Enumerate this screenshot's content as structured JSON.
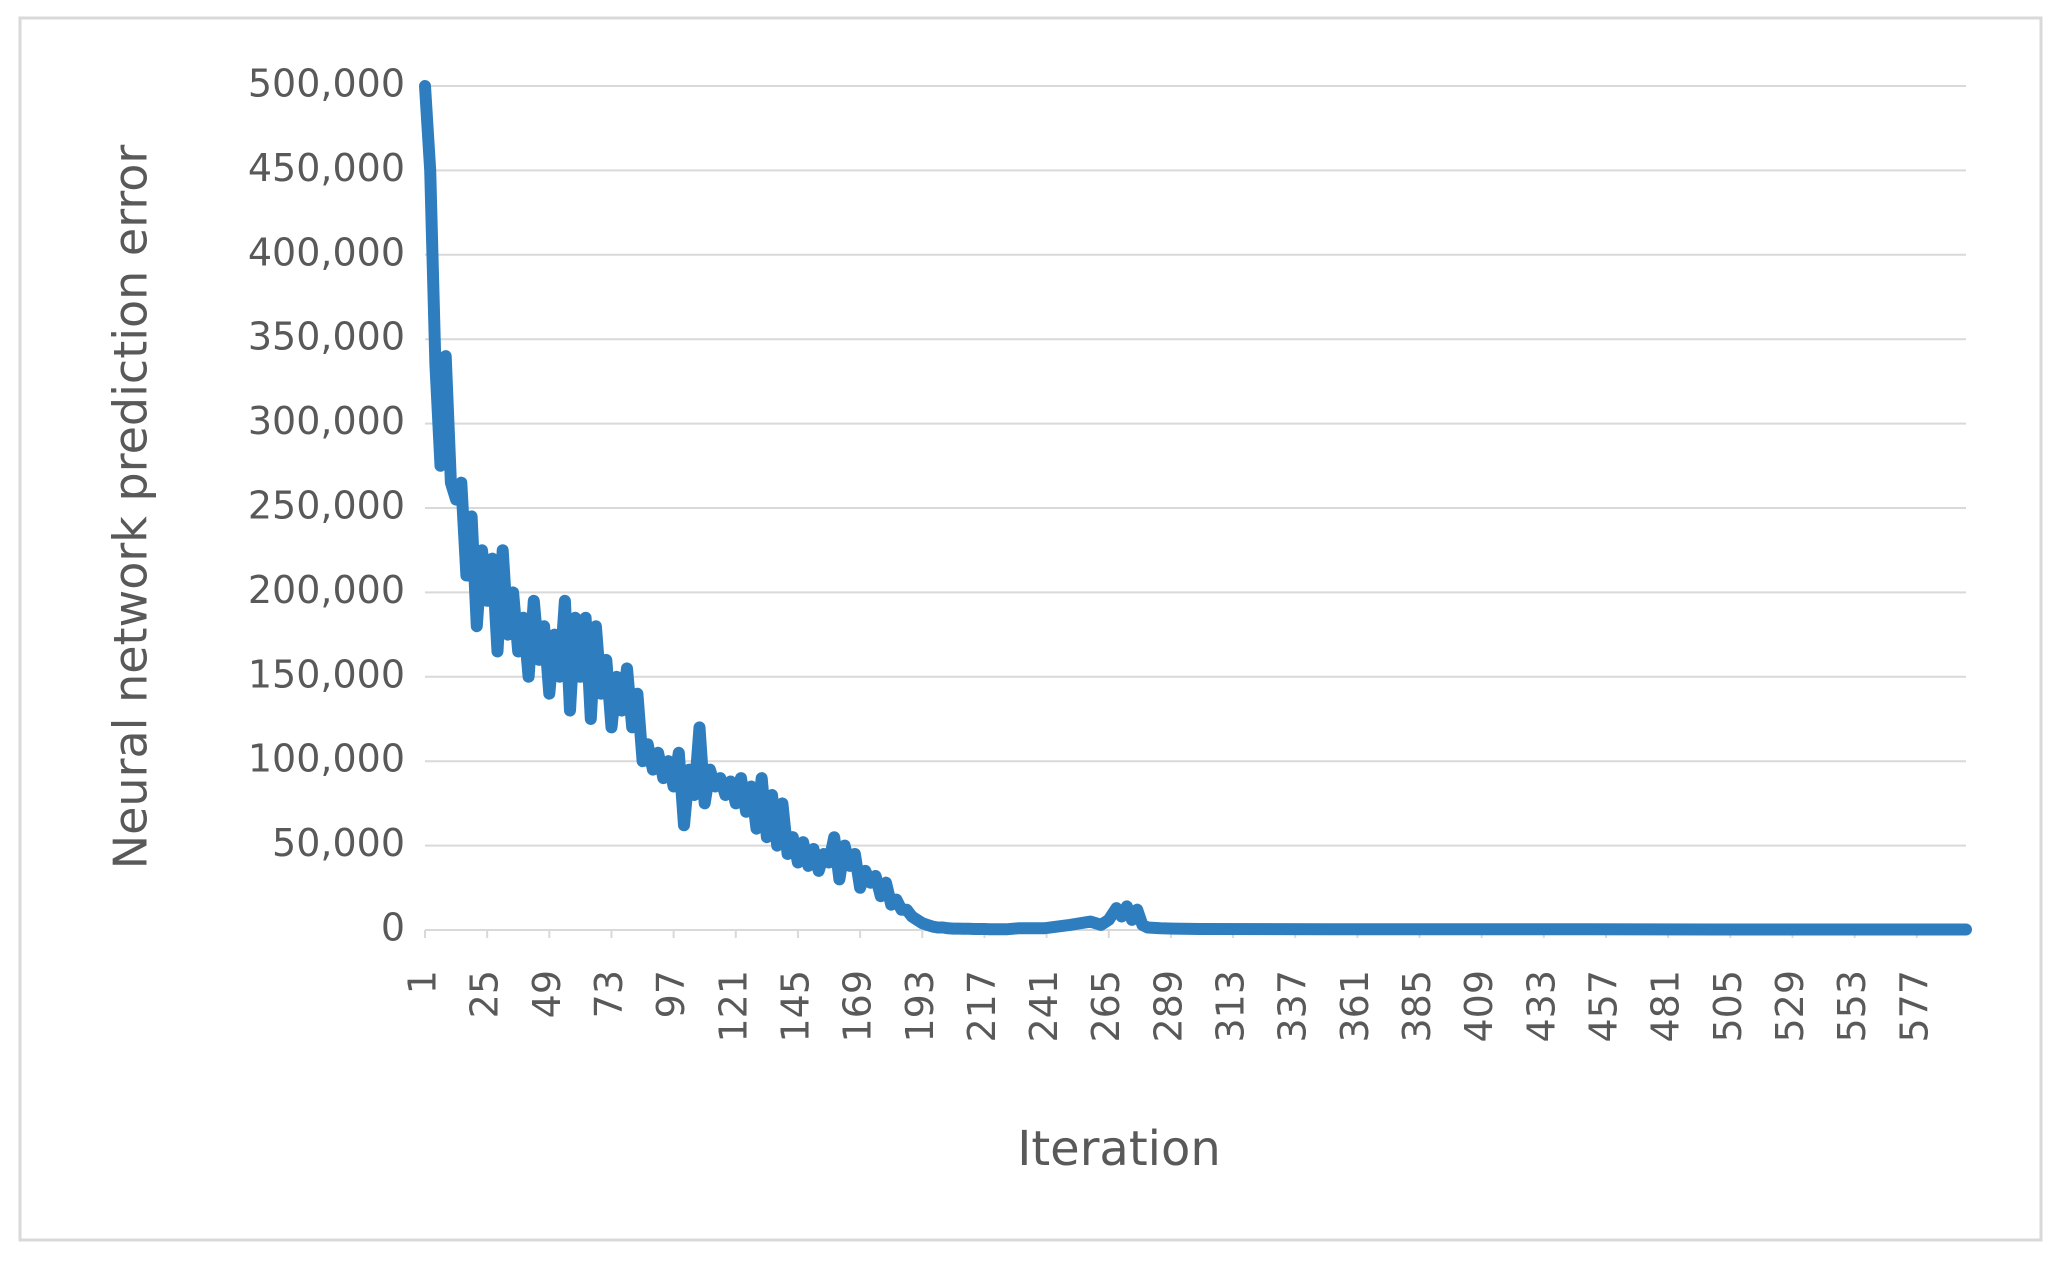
{
  "chart_data": {
    "type": "line",
    "x_label": "Iteration",
    "y_label": "Neural network prediction error",
    "color": "#2e7ebf",
    "grid": true,
    "xlim": [
      1,
      596
    ],
    "xticks": [
      1,
      25,
      49,
      73,
      97,
      121,
      145,
      169,
      193,
      217,
      241,
      265,
      289,
      313,
      337,
      361,
      385,
      409,
      433,
      457,
      481,
      505,
      529,
      553,
      577
    ],
    "ylim": [
      0,
      500000
    ],
    "yticks": [
      0,
      {
        "value": 50000,
        "label": "50,000"
      },
      {
        "value": 100000,
        "label": "100,000"
      },
      {
        "value": 150000,
        "label": "150,000"
      },
      {
        "value": 200000,
        "label": "200,000"
      },
      {
        "value": 250000,
        "label": "250,000"
      },
      {
        "value": 300000,
        "label": "300,000"
      },
      {
        "value": 350000,
        "label": "350,000"
      },
      {
        "value": 400000,
        "label": "400,000"
      },
      {
        "value": 450000,
        "label": "450,000"
      },
      {
        "value": 500000,
        "label": "500,000"
      }
    ],
    "x": [
      1,
      3,
      5,
      7,
      9,
      11,
      13,
      15,
      17,
      19,
      21,
      23,
      25,
      27,
      29,
      31,
      33,
      35,
      37,
      39,
      41,
      43,
      45,
      47,
      49,
      51,
      53,
      55,
      57,
      59,
      61,
      63,
      65,
      67,
      69,
      71,
      73,
      75,
      77,
      79,
      81,
      83,
      85,
      87,
      89,
      91,
      93,
      95,
      97,
      99,
      101,
      103,
      105,
      107,
      109,
      111,
      113,
      115,
      117,
      119,
      121,
      123,
      125,
      127,
      129,
      131,
      133,
      135,
      137,
      139,
      141,
      143,
      145,
      147,
      149,
      151,
      153,
      155,
      157,
      159,
      161,
      163,
      165,
      167,
      169,
      171,
      173,
      175,
      177,
      179,
      181,
      183,
      185,
      187,
      189,
      191,
      193,
      195,
      197,
      199,
      201,
      203,
      205,
      207,
      209,
      211,
      213,
      215,
      217,
      219,
      221,
      223,
      226,
      230,
      240,
      250,
      258,
      262,
      265,
      268,
      270,
      272,
      274,
      276,
      278,
      280,
      285,
      290,
      300,
      350,
      400,
      450,
      500,
      550,
      596
    ],
    "values": [
      500000,
      450000,
      335000,
      275000,
      340000,
      265000,
      255000,
      265000,
      210000,
      245000,
      180000,
      225000,
      195000,
      220000,
      165000,
      225000,
      175000,
      200000,
      165000,
      185000,
      150000,
      195000,
      160000,
      180000,
      140000,
      175000,
      150000,
      195000,
      130000,
      185000,
      150000,
      185000,
      125000,
      180000,
      140000,
      160000,
      120000,
      150000,
      130000,
      155000,
      120000,
      140000,
      100000,
      110000,
      95000,
      105000,
      90000,
      100000,
      85000,
      105000,
      62000,
      95000,
      80000,
      120000,
      75000,
      95000,
      85000,
      90000,
      80000,
      88000,
      75000,
      90000,
      70000,
      85000,
      60000,
      90000,
      55000,
      80000,
      50000,
      75000,
      45000,
      55000,
      40000,
      52000,
      38000,
      48000,
      35000,
      45000,
      40000,
      55000,
      30000,
      50000,
      38000,
      45000,
      25000,
      35000,
      28000,
      32000,
      20000,
      28000,
      15000,
      18000,
      12000,
      12000,
      8000,
      6000,
      4000,
      3000,
      2000,
      1500,
      1500,
      1000,
      800,
      800,
      700,
      700,
      600,
      600,
      600,
      500,
      500,
      500,
      500,
      1000,
      1000,
      3000,
      5000,
      3000,
      6000,
      13000,
      8000,
      14000,
      6000,
      12000,
      3000,
      1500,
      1000,
      800,
      600,
      500,
      400,
      400,
      300,
      300,
      300
    ]
  }
}
